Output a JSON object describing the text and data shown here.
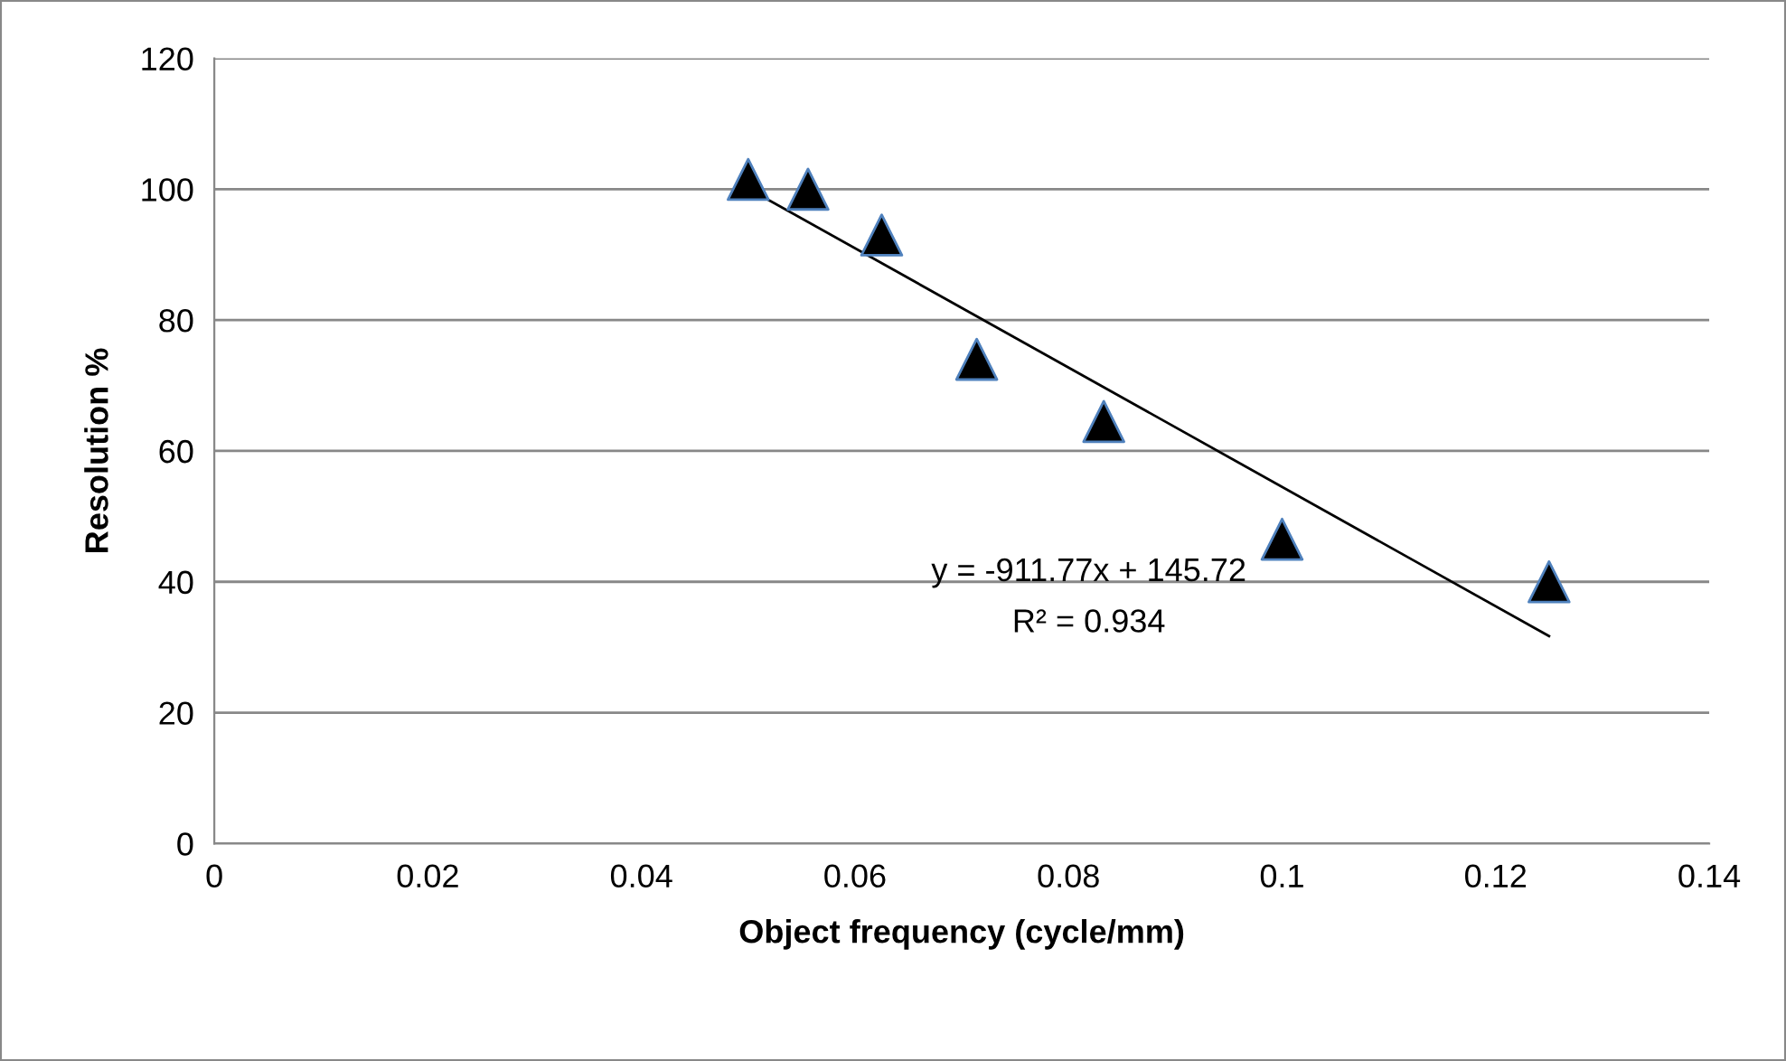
{
  "chart_data": {
    "type": "scatter",
    "xlabel": "Object frequency (cycle/mm)",
    "ylabel": "Resolution %",
    "x": [
      0.05,
      0.0556,
      0.0625,
      0.0714,
      0.0833,
      0.1,
      0.125
    ],
    "series": [
      {
        "color": "#000000",
        "values": [
          101.5,
          100,
          93,
          74,
          64.5,
          46.5,
          40
        ],
        "marker": "triangle"
      },
      {
        "type": "line",
        "color": "#000000",
        "x": [
          0.05,
          0.125
        ],
        "values": [
          100.1,
          31.7
        ],
        "marker": "none"
      }
    ],
    "xlim": [
      0,
      0.14
    ],
    "xticks": [
      0,
      0.02,
      0.04,
      0.06,
      0.08,
      0.1,
      0.12,
      0.14
    ],
    "ylim": [
      0,
      120
    ],
    "yticks": [
      0,
      20,
      40,
      60,
      80,
      100,
      120
    ],
    "grid": "y",
    "legend": false,
    "annotations": [
      "y = -911.77x + 145.72",
      "R² = 0.934"
    ]
  }
}
